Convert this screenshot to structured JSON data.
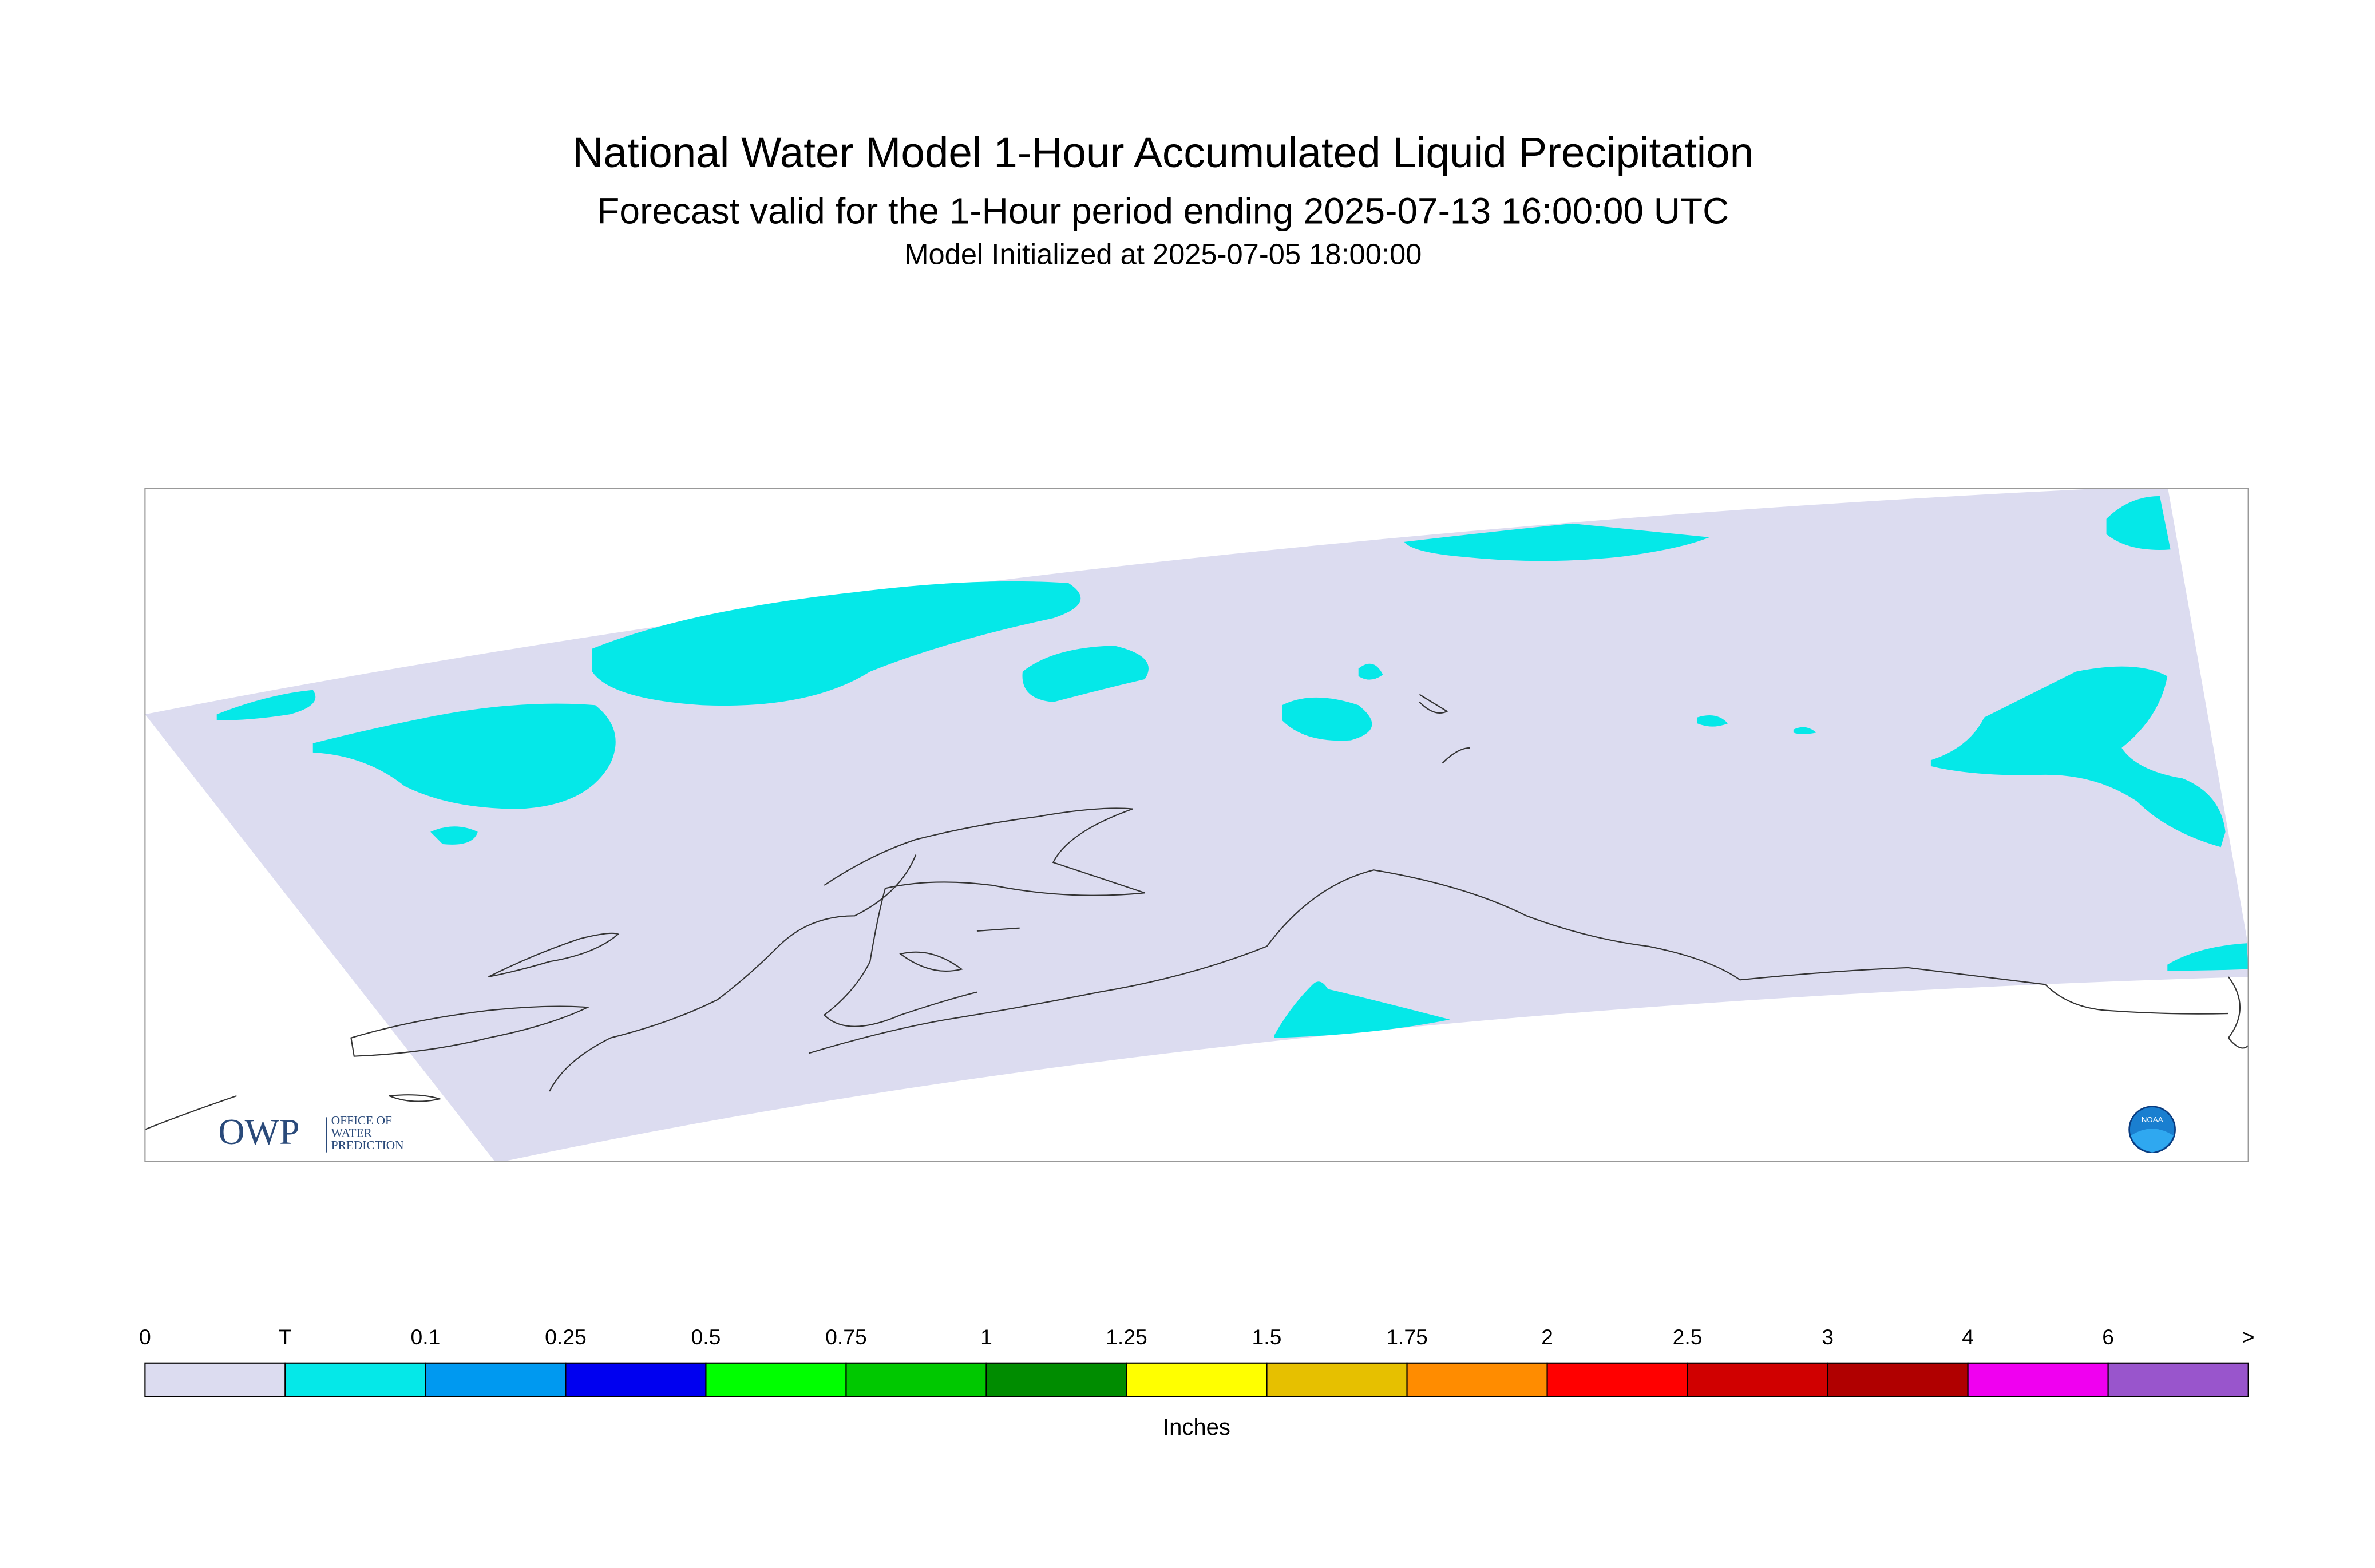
{
  "header": {
    "title": "National Water Model 1-Hour Accumulated Liquid Precipitation",
    "subtitle": "Forecast valid for the 1-Hour period ending 2025-07-13 16:00:00 UTC",
    "initialized": "Model Initialized at 2025-07-05 18:00:00"
  },
  "legend": {
    "labels": [
      "0",
      "T",
      "0.1",
      "0.25",
      "0.5",
      "0.75",
      "1",
      "1.25",
      "1.5",
      "1.75",
      "2",
      "2.5",
      "3",
      "4",
      "6",
      ">"
    ],
    "colors": [
      "#dcdcf0",
      "#05e8e8",
      "#0099f0",
      "#0000f0",
      "#00ff00",
      "#00c800",
      "#008c00",
      "#ffff00",
      "#e6c000",
      "#ff8c00",
      "#ff0000",
      "#d00000",
      "#b00000",
      "#f000f0",
      "#9955cc"
    ],
    "unit": "Inches"
  },
  "logos": {
    "owp": "OWP",
    "owp_lines": [
      "OFFICE OF",
      "WATER",
      "PREDICTION"
    ],
    "noaa": "NOAA"
  }
}
